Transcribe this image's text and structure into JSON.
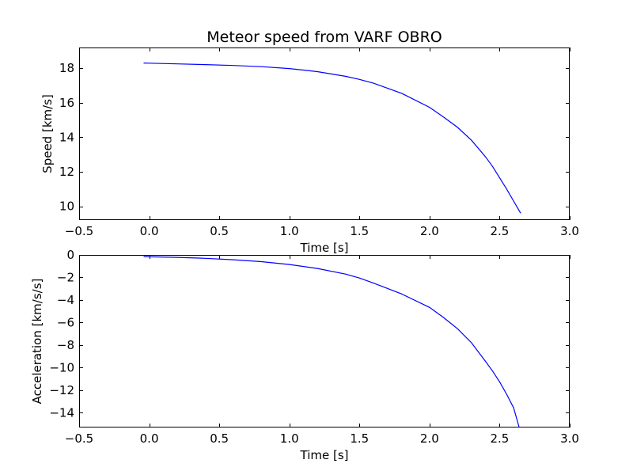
{
  "chart_data": [
    {
      "type": "line",
      "title": "Meteor speed from  VARF OBRO",
      "xlabel": "Time [s]",
      "ylabel": "Speed [km/s]",
      "xlim": [
        -0.5,
        3.0
      ],
      "ylim": [
        9.2,
        19.2
      ],
      "xticks": [
        -0.5,
        0.0,
        0.5,
        1.0,
        1.5,
        2.0,
        2.5,
        3.0
      ],
      "xtick_labels": [
        "−0.5",
        "0.0",
        "0.5",
        "1.0",
        "1.5",
        "2.0",
        "2.5",
        "3.0"
      ],
      "yticks": [
        10,
        12,
        14,
        16,
        18
      ],
      "ytick_labels": [
        "10",
        "12",
        "14",
        "16",
        "18"
      ],
      "grid": false,
      "color": "#0000ff",
      "series": [
        {
          "x": [
            -0.04,
            0.0,
            0.2,
            0.4,
            0.6,
            0.8,
            1.0,
            1.2,
            1.4,
            1.5,
            1.6,
            1.8,
            2.0,
            2.1,
            2.2,
            2.3,
            2.4,
            2.45,
            2.5,
            2.55,
            2.6,
            2.65
          ],
          "y": [
            18.3,
            18.29,
            18.25,
            18.21,
            18.16,
            18.09,
            17.98,
            17.8,
            17.53,
            17.35,
            17.13,
            16.55,
            15.73,
            15.17,
            14.57,
            13.82,
            12.86,
            12.3,
            11.65,
            11.0,
            10.3,
            9.6
          ]
        }
      ]
    },
    {
      "type": "line",
      "title": "",
      "xlabel": "Time [s]",
      "ylabel": "Acceleration [km/s/s]",
      "xlim": [
        -0.5,
        3.0
      ],
      "ylim": [
        -15.3,
        0
      ],
      "xticks": [
        -0.5,
        0.0,
        0.5,
        1.0,
        1.5,
        2.0,
        2.5,
        3.0
      ],
      "xtick_labels": [
        "−0.5",
        "0.0",
        "0.5",
        "1.0",
        "1.5",
        "2.0",
        "2.5",
        "3.0"
      ],
      "yticks": [
        0,
        -2,
        -4,
        -6,
        -8,
        -10,
        -12,
        -14
      ],
      "ytick_labels": [
        "0",
        "−2",
        "−4",
        "−6",
        "−8",
        "−10",
        "−12",
        "−14"
      ],
      "grid": false,
      "color": "#0000ff",
      "series": [
        {
          "x": [
            -0.04,
            0.0,
            0.2,
            0.4,
            0.6,
            0.8,
            1.0,
            1.2,
            1.4,
            1.5,
            1.6,
            1.8,
            2.0,
            2.1,
            2.2,
            2.3,
            2.4,
            2.45,
            2.5,
            2.55,
            2.6,
            2.64
          ],
          "y": [
            -0.15,
            -0.17,
            -0.22,
            -0.3,
            -0.43,
            -0.6,
            -0.85,
            -1.2,
            -1.7,
            -2.05,
            -2.5,
            -3.45,
            -4.65,
            -5.55,
            -6.55,
            -7.8,
            -9.45,
            -10.3,
            -11.25,
            -12.35,
            -13.55,
            -15.3
          ]
        }
      ]
    }
  ]
}
